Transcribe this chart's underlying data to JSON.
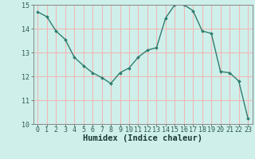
{
  "x": [
    0,
    1,
    2,
    3,
    4,
    5,
    6,
    7,
    8,
    9,
    10,
    11,
    12,
    13,
    14,
    15,
    16,
    17,
    18,
    19,
    20,
    21,
    22,
    23
  ],
  "y": [
    14.7,
    14.5,
    13.9,
    13.55,
    12.8,
    12.45,
    12.15,
    11.95,
    11.7,
    12.15,
    12.35,
    12.8,
    13.1,
    13.2,
    14.45,
    15.0,
    15.0,
    14.75,
    13.9,
    13.8,
    12.2,
    12.15,
    11.8,
    10.25
  ],
  "line_color": "#2e7d6e",
  "marker_color": "#2e7d6e",
  "bg_color": "#cff0ea",
  "grid_color_major": "#f0b8b8",
  "grid_color_minor": "#d8e8e4",
  "xlabel": "Humidex (Indice chaleur)",
  "ylim": [
    10,
    15
  ],
  "xlim_min": -0.5,
  "xlim_max": 23.5,
  "yticks": [
    10,
    11,
    12,
    13,
    14,
    15
  ],
  "xticks": [
    0,
    1,
    2,
    3,
    4,
    5,
    6,
    7,
    8,
    9,
    10,
    11,
    12,
    13,
    14,
    15,
    16,
    17,
    18,
    19,
    20,
    21,
    22,
    23
  ],
  "tick_fontsize": 6,
  "label_fontsize": 7.5,
  "spine_color": "#888888"
}
